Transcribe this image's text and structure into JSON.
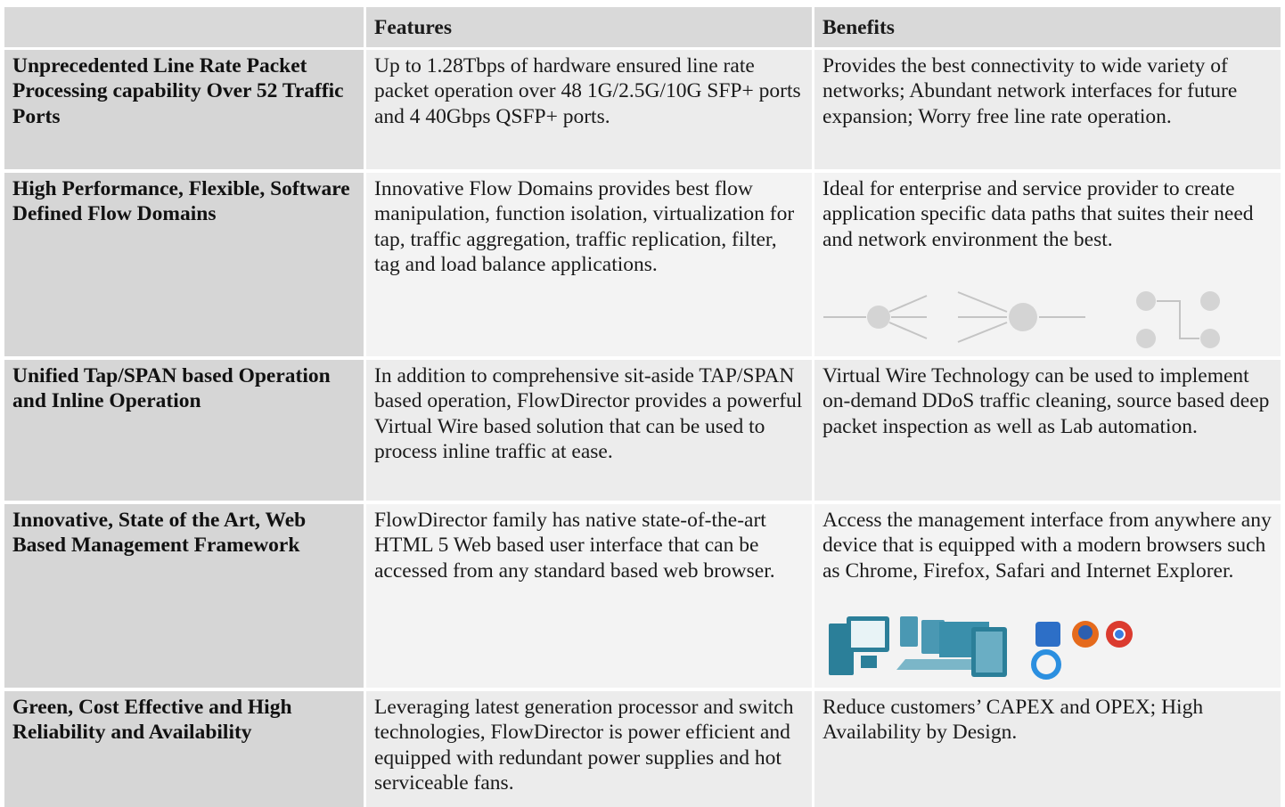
{
  "header": {
    "features": "Features",
    "benefits": "Benefits"
  },
  "rows": [
    {
      "title": "Unprecedented Line Rate Packet Processing capability Over 52 Traffic Ports",
      "features": "Up to 1.28Tbps of hardware ensured line rate packet operation  over 48 1G/2.5G/10G SFP+ ports and 4 40Gbps QSFP+ ports.",
      "benefits": "Provides the best connectivity to wide variety of networks; Abundant network interfaces for future expansion; Worry free line rate operation."
    },
    {
      "title": "High Performance, Flexible, Software Defined Flow Domains",
      "features": "Innovative Flow Domains provides best flow manipulation, function isolation, virtualization for tap, traffic aggregation, traffic replication,  filter, tag and load balance applications.",
      "benefits": "Ideal for enterprise and service provider to create application specific data paths that suites their need and network environment the best."
    },
    {
      "title": "Unified Tap/SPAN based Operation and Inline Operation",
      "features": "In addition to comprehensive sit-aside TAP/SPAN based operation, FlowDirector provides a powerful Virtual Wire based solution that can be used to process inline traffic at ease.",
      "benefits": "Virtual Wire Technology can be used to implement on-demand DDoS traffic cleaning, source based deep packet inspection as well as Lab automation."
    },
    {
      "title": "Innovative, State of the Art, Web Based Management Framework",
      "features": "FlowDirector family has native state-of-the-art HTML 5 Web based user interface that can be accessed from any standard based web browser.",
      "benefits": "Access the management interface from anywhere any device that is equipped with a modern browsers such as Chrome, Firefox, Safari and Internet Explorer."
    },
    {
      "title": "Green, Cost Effective and High Reliability and Availability",
      "features": "Leveraging latest generation processor and switch technologies, FlowDirector is power efficient and equipped with redundant power supplies and hot serviceable fans.",
      "benefits": "Reduce customers’ CAPEX and OPEX; High Availability by Design."
    }
  ]
}
